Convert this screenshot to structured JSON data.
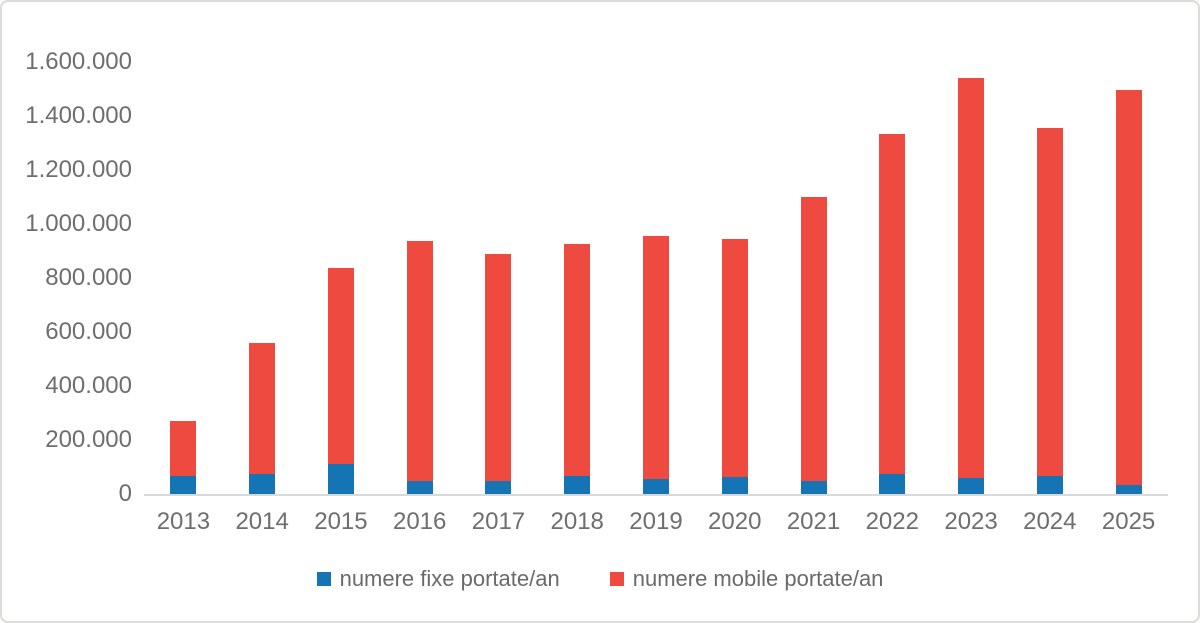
{
  "chart_data": {
    "type": "bar",
    "stacked": true,
    "title": "",
    "categories": [
      "2013",
      "2014",
      "2015",
      "2016",
      "2017",
      "2018",
      "2019",
      "2020",
      "2021",
      "2022",
      "2023",
      "2024",
      "2025"
    ],
    "series": [
      {
        "name": "numere fixe portate/an",
        "color": "#1474b4",
        "values": [
          65000,
          75000,
          110000,
          50000,
          47000,
          65000,
          57000,
          63000,
          48000,
          75000,
          60000,
          66000,
          35000
        ]
      },
      {
        "name": "numere mobile portate/an",
        "color": "#ee4a40",
        "values": [
          205000,
          485000,
          728000,
          888000,
          843000,
          862000,
          898000,
          882000,
          1052000,
          1260000,
          1480000,
          1289000,
          1460000
        ]
      }
    ],
    "totals": [
      270000,
      560000,
      838000,
      938000,
      890000,
      927000,
      955000,
      945000,
      1100000,
      1335000,
      1540000,
      1355000,
      1495000
    ],
    "xlabel": "",
    "ylabel": "",
    "ylim": [
      0,
      1600000
    ],
    "ytick_step": 200000,
    "ytick_labels_top_to_bottom": [
      "1.600.000",
      "1.400.000",
      "1.200.000",
      "1.000.000",
      "800.000",
      "600.000",
      "400.000",
      "200.000",
      "0"
    ],
    "grid": false,
    "legend_position": "bottom",
    "axis_text_color": "#6e6e6e",
    "axis_line_color": "#d9d9d9"
  }
}
